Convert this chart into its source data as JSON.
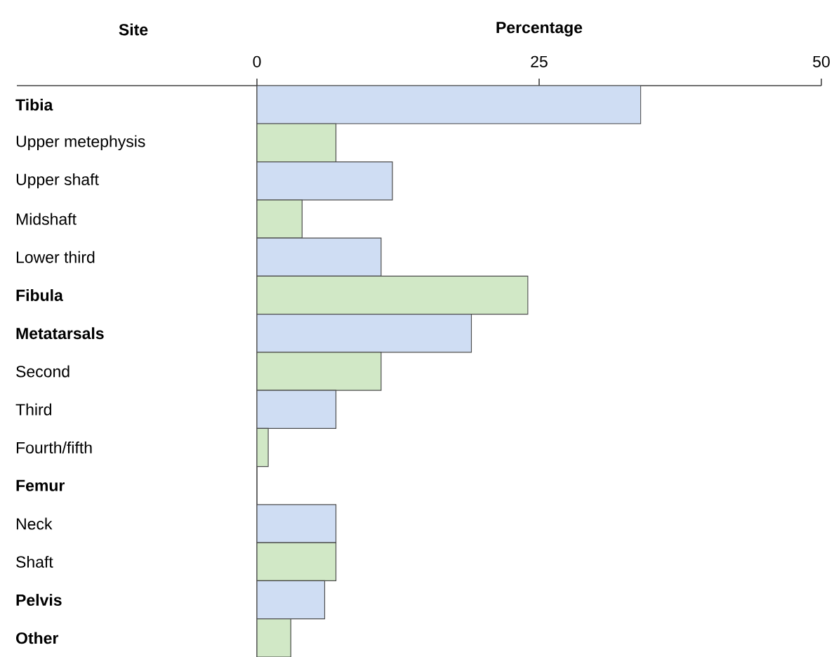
{
  "chart_data": {
    "type": "bar",
    "orientation": "horizontal",
    "xlabel": "Percentage",
    "ylabel": "Site",
    "categories": [
      "**Tibia**",
      "Upper metephysis",
      "Upper shaft",
      "Midshaft",
      "Lower third",
      "**Fibula**",
      "**Metatarsals**",
      "Second",
      "Third",
      "Fourth/fifth",
      "**Femur**",
      "Neck",
      "Shaft",
      "**Pelvis**",
      "**Other**"
    ],
    "values": [
      34,
      7,
      12,
      4,
      11,
      24,
      19,
      11,
      7,
      1,
      null,
      7,
      7,
      6,
      3
    ],
    "colors": [
      "#cfddf3",
      "#d1e8c6",
      "#cfddf3",
      "#d1e8c6",
      "#cfddf3",
      "#d1e8c6",
      "#cfddf3",
      "#d1e8c6",
      "#cfddf3",
      "#d1e8c6",
      null,
      "#cfddf3",
      "#d1e8c6",
      "#cfddf3",
      "#d1e8c6"
    ],
    "xlim": [
      0,
      50
    ],
    "xticks": [
      0,
      25,
      50
    ]
  }
}
